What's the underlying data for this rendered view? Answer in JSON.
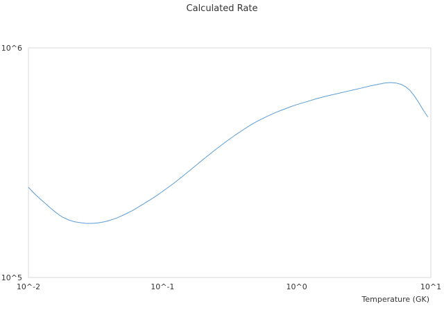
{
  "chart_data": {
    "type": "line",
    "title": "Calculated Rate",
    "xlabel": "Temperature (GK)",
    "ylabel": "",
    "x_scale": "log",
    "y_scale": "log",
    "xlim": [
      0.01,
      10
    ],
    "ylim": [
      100000,
      1000000
    ],
    "x_ticks": [
      "10^-2",
      "10^-1",
      "10^0",
      "10^1"
    ],
    "y_ticks": [
      "10^5",
      "10^6"
    ],
    "grid": false,
    "legend": "none",
    "colors": {
      "series": "#5b9bd5",
      "frame": "#d9d9d9",
      "text": "#333333"
    },
    "series": [
      {
        "x": [
          0.01,
          0.011,
          0.012,
          0.013,
          0.014,
          0.015,
          0.016,
          0.017,
          0.018,
          0.02,
          0.022,
          0.025,
          0.027,
          0.03,
          0.033,
          0.037,
          0.04,
          0.045,
          0.05,
          0.055,
          0.06,
          0.07,
          0.08,
          0.09,
          0.1,
          0.12,
          0.14,
          0.16,
          0.18,
          0.2,
          0.25,
          0.3,
          0.35,
          0.4,
          0.45,
          0.5,
          0.6,
          0.7,
          0.8,
          0.9,
          1.0,
          1.2,
          1.4,
          1.6,
          1.8,
          2.0,
          2.5,
          3.0,
          3.5,
          4.0,
          4.5,
          5.0,
          5.5,
          6.0,
          6.5,
          7.0,
          7.5,
          8.0,
          8.5,
          9.0,
          9.5
        ],
        "y": [
          247000,
          233000,
          222000,
          213000,
          205000,
          198000,
          192000,
          187000,
          183000,
          178000,
          175000,
          173000,
          172000,
          172000,
          173000,
          175000,
          177000,
          181000,
          186000,
          191000,
          196000,
          207000,
          217000,
          227000,
          237000,
          256000,
          275000,
          293000,
          310000,
          326000,
          362000,
          392000,
          418000,
          440000,
          460000,
          477000,
          503000,
          524000,
          540000,
          554000,
          566000,
          584000,
          600000,
          613000,
          623000,
          632000,
          651000,
          667000,
          682000,
          693000,
          703000,
          706000,
          703000,
          694000,
          677000,
          652000,
          620000,
          586000,
          553000,
          524000,
          500000
        ]
      }
    ]
  }
}
